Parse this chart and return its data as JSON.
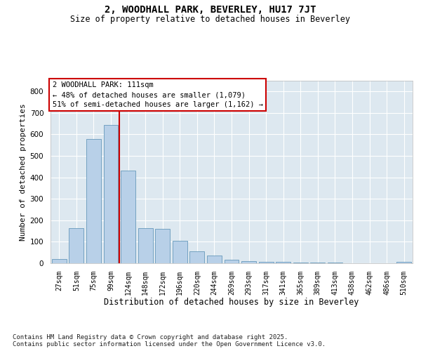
{
  "title_line1": "2, WOODHALL PARK, BEVERLEY, HU17 7JT",
  "title_line2": "Size of property relative to detached houses in Beverley",
  "xlabel": "Distribution of detached houses by size in Beverley",
  "ylabel": "Number of detached properties",
  "categories": [
    "27sqm",
    "51sqm",
    "75sqm",
    "99sqm",
    "124sqm",
    "148sqm",
    "172sqm",
    "196sqm",
    "220sqm",
    "244sqm",
    "269sqm",
    "293sqm",
    "317sqm",
    "341sqm",
    "365sqm",
    "389sqm",
    "413sqm",
    "438sqm",
    "462sqm",
    "486sqm",
    "510sqm"
  ],
  "values": [
    20,
    165,
    580,
    645,
    430,
    165,
    160,
    105,
    55,
    35,
    15,
    10,
    8,
    5,
    4,
    2,
    2,
    1,
    0,
    0,
    5
  ],
  "bar_color": "#b8d0e8",
  "bar_edge_color": "#6699bb",
  "vline_position": 3.5,
  "vline_color": "#cc0000",
  "annotation_text": "2 WOODHALL PARK: 111sqm\n← 48% of detached houses are smaller (1,079)\n51% of semi-detached houses are larger (1,162) →",
  "annotation_box_facecolor": "#ffffff",
  "annotation_box_edgecolor": "#cc0000",
  "ylim": [
    0,
    850
  ],
  "yticks": [
    0,
    100,
    200,
    300,
    400,
    500,
    600,
    700,
    800
  ],
  "fig_bg_color": "#ffffff",
  "plot_bg_color": "#dde8f0",
  "grid_color": "#ffffff",
  "footer_line1": "Contains HM Land Registry data © Crown copyright and database right 2025.",
  "footer_line2": "Contains public sector information licensed under the Open Government Licence v3.0."
}
